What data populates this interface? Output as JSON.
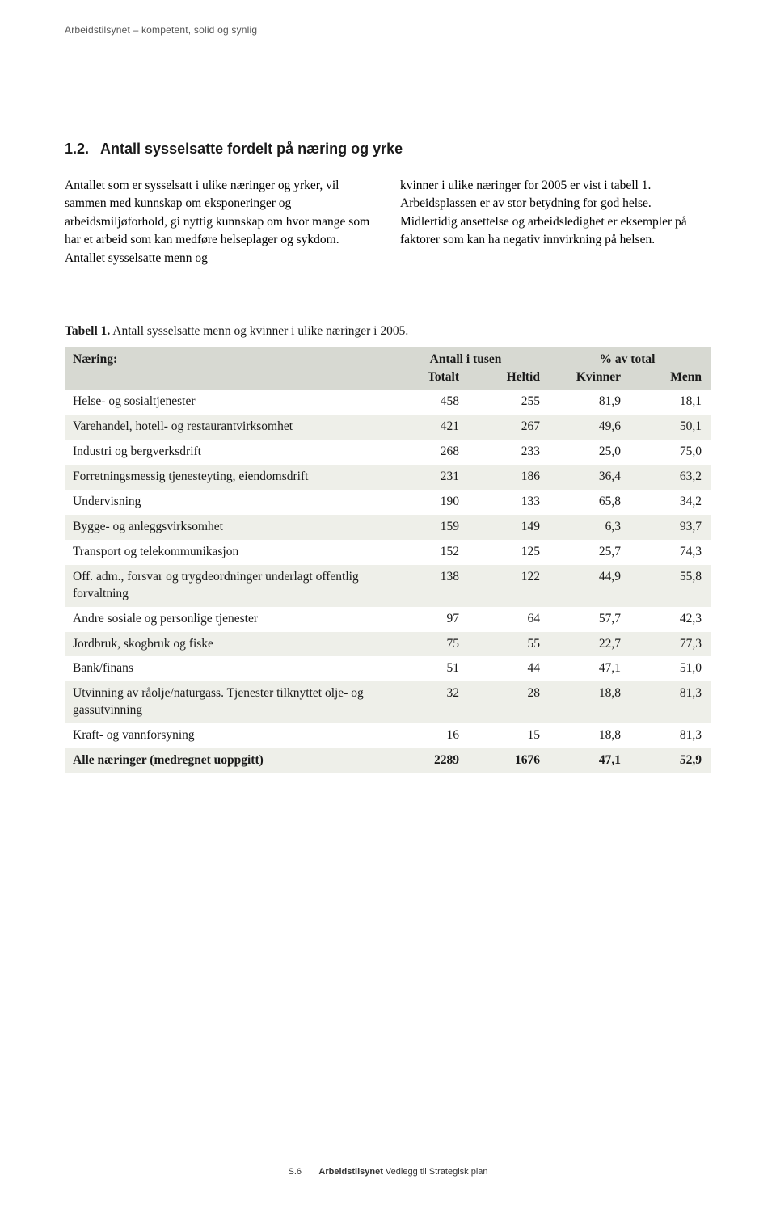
{
  "header": "Arbeidstilsynet – kompetent, solid og synlig",
  "section": {
    "number": "1.2.",
    "title": "Antall sysselsatte fordelt på næring og yrke"
  },
  "body": {
    "left": "Antallet som er sysselsatt i ulike næringer og yrker, vil sammen med kunnskap om eksponeringer og arbeidsmiljøforhold, gi nyttig kunnskap om hvor mange som har et arbeid som kan medføre helse­plager og sykdom. Antallet sysselsatte menn og",
    "right": "kvinner i ulike næringer for 2005 er vist i tabell 1. Arbeidsplassen er av stor betydning for god helse. Midlertidig ansettelse og arbeidsledighet er eksem­pler på faktorer som kan ha negativ innvirkning på helsen."
  },
  "tableCaption": {
    "bold": "Tabell 1.",
    "rest": " Antall sysselsatte menn og kvinner i ulike næringer i 2005."
  },
  "table": {
    "headers": {
      "naering": "Næring:",
      "antall": "Antall i tusen",
      "pct": "% av total",
      "totalt": "Totalt",
      "heltid": "Heltid",
      "kvinner": "Kvinner",
      "menn": "Menn"
    },
    "rows": [
      {
        "label": "Helse- og sosialtjenester",
        "totalt": "458",
        "heltid": "255",
        "kvinner": "81,9",
        "menn": "18,1"
      },
      {
        "label": "Varehandel, hotell- og restaurantvirksomhet",
        "totalt": "421",
        "heltid": "267",
        "kvinner": "49,6",
        "menn": "50,1"
      },
      {
        "label": "Industri og bergverksdrift",
        "totalt": "268",
        "heltid": "233",
        "kvinner": "25,0",
        "menn": "75,0"
      },
      {
        "label": "Forretningsmessig tjenesteyting, eiendomsdrift",
        "totalt": "231",
        "heltid": "186",
        "kvinner": "36,4",
        "menn": "63,2"
      },
      {
        "label": "Undervisning",
        "totalt": "190",
        "heltid": "133",
        "kvinner": "65,8",
        "menn": "34,2"
      },
      {
        "label": "Bygge- og anleggsvirksomhet",
        "totalt": "159",
        "heltid": "149",
        "kvinner": "6,3",
        "menn": "93,7"
      },
      {
        "label": "Transport og telekommunikasjon",
        "totalt": "152",
        "heltid": "125",
        "kvinner": "25,7",
        "menn": "74,3"
      },
      {
        "label": "Off. adm., forsvar og trygdeordninger underlagt offentlig forvaltning",
        "totalt": "138",
        "heltid": "122",
        "kvinner": "44,9",
        "menn": "55,8"
      },
      {
        "label": "Andre sosiale og personlige tjenester",
        "totalt": "97",
        "heltid": "64",
        "kvinner": "57,7",
        "menn": "42,3"
      },
      {
        "label": "Jordbruk, skogbruk og fiske",
        "totalt": "75",
        "heltid": "55",
        "kvinner": "22,7",
        "menn": "77,3"
      },
      {
        "label": "Bank/finans",
        "totalt": "51",
        "heltid": "44",
        "kvinner": "47,1",
        "menn": "51,0"
      },
      {
        "label": "Utvinning av råolje/naturgass. Tjenester tilknyttet olje- og gassutvinning",
        "totalt": "32",
        "heltid": "28",
        "kvinner": "18,8",
        "menn": "81,3"
      },
      {
        "label": "Kraft- og vannforsyning",
        "totalt": "16",
        "heltid": "15",
        "kvinner": "18,8",
        "menn": "81,3"
      },
      {
        "label": "Alle næringer (medregnet uoppgitt)",
        "totalt": "2289",
        "heltid": "1676",
        "kvinner": "47,1",
        "menn": "52,9",
        "total": true
      }
    ],
    "styling": {
      "headerBg": "#d7d9d2",
      "altRowBg": "#eeefe9",
      "fontFamily": "Georgia, serif",
      "fontSize": 15.5,
      "textColor": "#000000"
    }
  },
  "footer": {
    "page": "S.6",
    "bold": "Arbeidstilsynet",
    "rest": " Vedlegg til Strategisk plan"
  }
}
